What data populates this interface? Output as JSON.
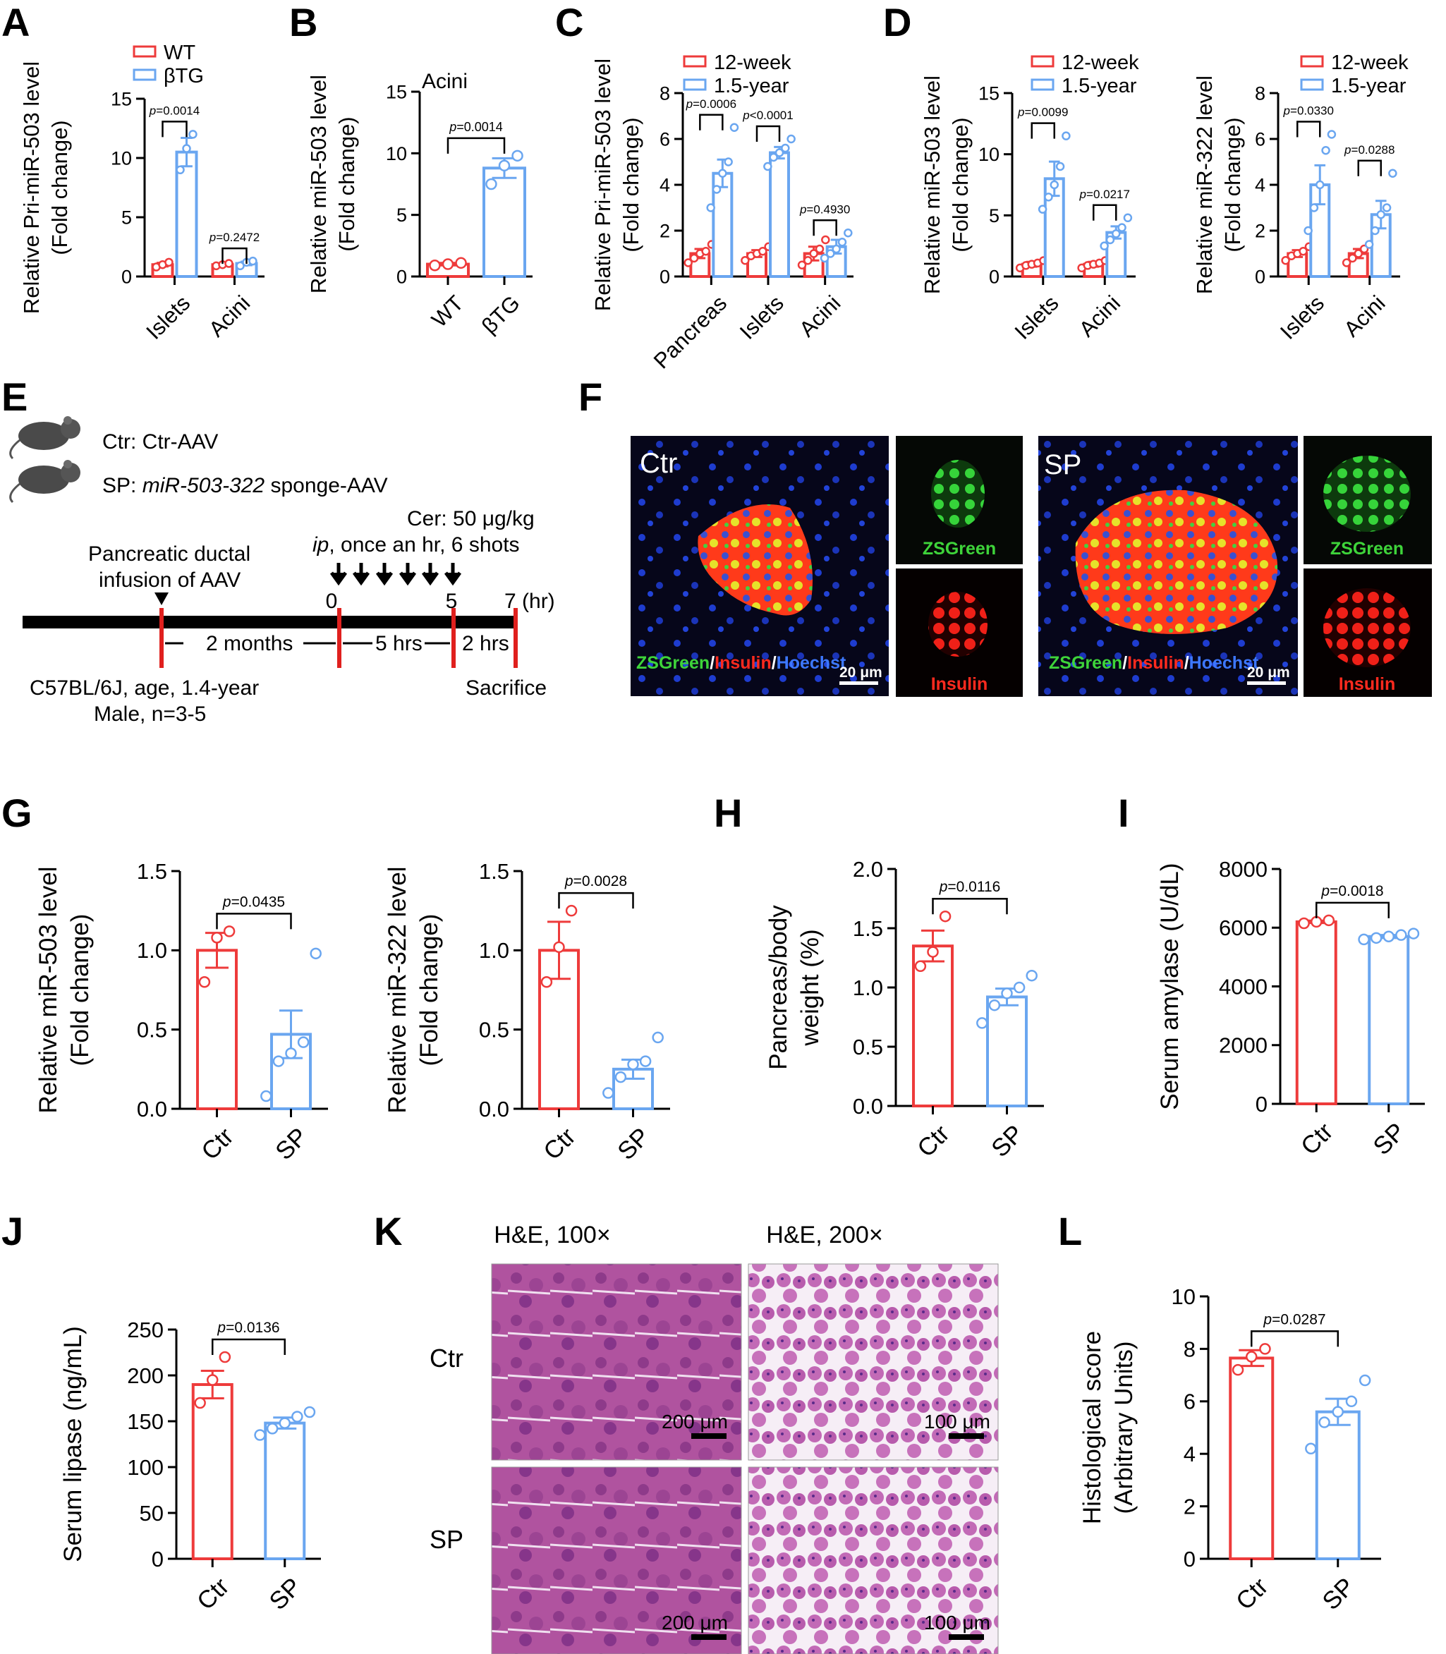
{
  "panel_labels": [
    "A",
    "B",
    "C",
    "D",
    "E",
    "F",
    "G",
    "H",
    "I",
    "J",
    "K",
    "L"
  ],
  "colors": {
    "red": "#ee3b3b",
    "blue": "#6aa6f0",
    "black": "#000000",
    "dark_bg": "#06061a",
    "ctr_text": "#ffffff"
  },
  "chart_data": [
    {
      "id": "A",
      "type": "bar",
      "ylabel": "Relative Pri-miR-503 level",
      "ylabel2": "(Fold change)",
      "ylim": [
        0,
        15
      ],
      "yticks": [
        0,
        5,
        10,
        15
      ],
      "categories": [
        "Islets",
        "Acini"
      ],
      "legend": [
        "WT",
        "βTG"
      ],
      "series": [
        {
          "name": "WT",
          "values": [
            1.0,
            1.0
          ],
          "errors": [
            0.15,
            0.1
          ],
          "points": [
            [
              0.8,
              1.0,
              1.2
            ],
            [
              0.9,
              1.0,
              1.1
            ]
          ]
        },
        {
          "name": "βTG",
          "values": [
            10.5,
            1.1
          ],
          "errors": [
            1.2,
            0.15
          ],
          "points": [
            [
              9.0,
              10.8,
              12.0
            ],
            [
              0.9,
              1.2,
              1.3
            ]
          ]
        }
      ],
      "pvalues": [
        {
          "label": "p=0.0014",
          "group": 0
        },
        {
          "label": "p=0.2472",
          "group": 1
        }
      ]
    },
    {
      "id": "B",
      "type": "bar",
      "title": "Acini",
      "ylabel": "Relative miR-503 level",
      "ylabel2": "(Fold change)",
      "ylim": [
        0,
        15
      ],
      "yticks": [
        0,
        5,
        10,
        15
      ],
      "categories": [
        "WT",
        "βTG"
      ],
      "series": [
        {
          "name": "value",
          "values": [
            1.0,
            8.8
          ],
          "errors": [
            0.1,
            0.8
          ],
          "points": [
            [
              0.9,
              1.0,
              1.1
            ],
            [
              7.5,
              9.0,
              9.8
            ]
          ]
        }
      ],
      "pvalues": [
        {
          "label": "p=0.0014",
          "pair": [
            0,
            1
          ]
        }
      ]
    },
    {
      "id": "C",
      "type": "bar",
      "ylabel": "Relative Pri-miR-503 level",
      "ylabel2": "(Fold change)",
      "ylim": [
        0,
        8
      ],
      "yticks": [
        0,
        2,
        4,
        6,
        8
      ],
      "categories": [
        "Pancreas",
        "Islets",
        "Acini"
      ],
      "legend": [
        "12-week",
        "1.5-year"
      ],
      "series": [
        {
          "name": "12-week",
          "values": [
            1.0,
            1.0,
            1.0
          ],
          "errors": [
            0.2,
            0.15,
            0.3
          ],
          "points": [
            [
              0.6,
              0.8,
              1.0,
              1.1,
              1.4
            ],
            [
              0.7,
              0.9,
              1.0,
              1.1,
              1.3
            ],
            [
              0.5,
              0.7,
              1.0,
              1.2,
              1.6
            ]
          ]
        },
        {
          "name": "1.5-year",
          "values": [
            4.5,
            5.4,
            1.3
          ],
          "errors": [
            0.6,
            0.25,
            0.3
          ],
          "points": [
            [
              3.0,
              3.8,
              4.5,
              5.0,
              6.5
            ],
            [
              4.8,
              5.2,
              5.4,
              5.6,
              6.0
            ],
            [
              0.8,
              1.0,
              1.2,
              1.5,
              1.9
            ]
          ]
        }
      ],
      "pvalues": [
        {
          "label": "p=0.0006",
          "group": 0
        },
        {
          "label": "p<0.0001",
          "group": 1
        },
        {
          "label": "p=0.4930",
          "group": 2
        }
      ]
    },
    {
      "id": "D1",
      "type": "bar",
      "ylabel": "Relative miR-503 level",
      "ylabel2": "(Fold change)",
      "ylim": [
        0,
        15
      ],
      "yticks": [
        0,
        5,
        10,
        15
      ],
      "categories": [
        "Islets",
        "Acini"
      ],
      "legend": [
        "12-week",
        "1.5-year"
      ],
      "series": [
        {
          "name": "12-week",
          "values": [
            1.0,
            1.0
          ],
          "errors": [
            0.2,
            0.2
          ],
          "points": [
            [
              0.7,
              0.9,
              1.0,
              1.1,
              1.3
            ],
            [
              0.7,
              0.9,
              1.0,
              1.1,
              1.3
            ]
          ]
        },
        {
          "name": "1.5-year",
          "values": [
            8.0,
            3.6
          ],
          "errors": [
            1.4,
            0.5
          ],
          "points": [
            [
              5.5,
              6.5,
              7.5,
              9.0,
              11.5
            ],
            [
              2.5,
              3.0,
              3.5,
              4.0,
              4.8
            ]
          ]
        }
      ],
      "pvalues": [
        {
          "label": "p=0.0099",
          "group": 0
        },
        {
          "label": "p=0.0217",
          "group": 1
        }
      ]
    },
    {
      "id": "D2",
      "type": "bar",
      "ylabel": "Relative miR-322 level",
      "ylabel2": "(Fold change)",
      "ylim": [
        0,
        8
      ],
      "yticks": [
        0,
        2,
        4,
        6,
        8
      ],
      "categories": [
        "Islets",
        "Acini"
      ],
      "legend": [
        "12-week",
        "1.5-year"
      ],
      "series": [
        {
          "name": "12-week",
          "values": [
            1.0,
            1.0
          ],
          "errors": [
            0.15,
            0.2
          ],
          "points": [
            [
              0.7,
              0.9,
              1.0,
              1.1,
              1.3
            ],
            [
              0.6,
              0.8,
              1.0,
              1.2,
              1.4
            ]
          ]
        },
        {
          "name": "1.5-year",
          "values": [
            4.0,
            2.7
          ],
          "errors": [
            0.85,
            0.6
          ],
          "points": [
            [
              2.0,
              3.0,
              4.0,
              5.5,
              6.2
            ],
            [
              1.4,
              2.0,
              2.7,
              3.0,
              4.5
            ]
          ]
        }
      ],
      "pvalues": [
        {
          "label": "p=0.0330",
          "group": 0
        },
        {
          "label": "p=0.0288",
          "group": 1
        }
      ]
    },
    {
      "id": "G1",
      "type": "bar",
      "ylabel": "Relative miR-503 level",
      "ylabel2": "(Fold change)",
      "ylim": [
        0,
        1.5
      ],
      "yticks": [
        "0.0",
        "0.5",
        "1.0",
        "1.5"
      ],
      "categories": [
        "Ctr",
        "SP"
      ],
      "series": [
        {
          "name": "value",
          "values": [
            1.0,
            0.47
          ],
          "errors": [
            0.11,
            0.15
          ],
          "points": [
            [
              0.8,
              1.08,
              1.12
            ],
            [
              0.08,
              0.3,
              0.35,
              0.42,
              0.98
            ]
          ]
        }
      ],
      "pvalues": [
        {
          "label": "p=0.0435",
          "pair": [
            0,
            1
          ]
        }
      ]
    },
    {
      "id": "G2",
      "type": "bar",
      "ylabel": "Relative miR-322 level",
      "ylabel2": "(Fold change)",
      "ylim": [
        0,
        1.5
      ],
      "yticks": [
        "0.0",
        "0.5",
        "1.0",
        "1.5"
      ],
      "categories": [
        "Ctr",
        "SP"
      ],
      "series": [
        {
          "name": "value",
          "values": [
            1.0,
            0.25
          ],
          "errors": [
            0.18,
            0.06
          ],
          "points": [
            [
              0.8,
              1.02,
              1.25
            ],
            [
              0.1,
              0.2,
              0.28,
              0.3,
              0.45
            ]
          ]
        }
      ],
      "pvalues": [
        {
          "label": "p=0.0028",
          "pair": [
            0,
            1
          ]
        }
      ]
    },
    {
      "id": "H",
      "type": "bar",
      "ylabel": "Pancreas/body",
      "ylabel2": "weight (%)",
      "ylim": [
        0,
        2.0
      ],
      "yticks": [
        "0.0",
        "0.5",
        "1.0",
        "1.5",
        "2.0"
      ],
      "categories": [
        "Ctr",
        "SP"
      ],
      "series": [
        {
          "name": "value",
          "values": [
            1.35,
            0.92
          ],
          "errors": [
            0.13,
            0.07
          ],
          "points": [
            [
              1.18,
              1.3,
              1.6
            ],
            [
              0.7,
              0.85,
              0.95,
              1.0,
              1.1
            ]
          ]
        }
      ],
      "pvalues": [
        {
          "label": "p=0.0116",
          "pair": [
            0,
            1
          ]
        }
      ]
    },
    {
      "id": "I",
      "type": "bar",
      "ylabel": "Serum amylase (U/dL)",
      "ylim": [
        0,
        8000
      ],
      "yticks": [
        0,
        2000,
        4000,
        6000,
        8000
      ],
      "categories": [
        "Ctr",
        "SP"
      ],
      "series": [
        {
          "name": "value",
          "values": [
            6200,
            5700
          ],
          "errors": [
            40,
            50
          ],
          "points": [
            [
              6150,
              6200,
              6250
            ],
            [
              5600,
              5650,
              5700,
              5750,
              5800
            ]
          ]
        }
      ],
      "pvalues": [
        {
          "label": "p=0.0018",
          "pair": [
            0,
            1
          ]
        }
      ]
    },
    {
      "id": "J",
      "type": "bar",
      "ylabel": "Serum lipase (ng/mL)",
      "ylim": [
        0,
        250
      ],
      "yticks": [
        0,
        50,
        100,
        150,
        200,
        250
      ],
      "categories": [
        "Ctr",
        "SP"
      ],
      "series": [
        {
          "name": "value",
          "values": [
            190,
            148
          ],
          "errors": [
            15,
            6
          ],
          "points": [
            [
              170,
              195,
              220
            ],
            [
              135,
              142,
              148,
              155,
              160
            ]
          ]
        }
      ],
      "pvalues": [
        {
          "label": "p=0.0136",
          "pair": [
            0,
            1
          ]
        }
      ]
    },
    {
      "id": "L",
      "type": "bar",
      "ylabel": "Histological score",
      "ylabel2": "(Arbitrary Units)",
      "ylim": [
        0,
        10
      ],
      "yticks": [
        0,
        2,
        4,
        6,
        8,
        10
      ],
      "categories": [
        "Ctr",
        "SP"
      ],
      "series": [
        {
          "name": "value",
          "values": [
            7.65,
            5.6
          ],
          "errors": [
            0.3,
            0.5
          ],
          "points": [
            [
              7.2,
              7.7,
              8.0
            ],
            [
              4.2,
              5.2,
              5.6,
              6.0,
              6.8
            ]
          ]
        }
      ],
      "pvalues": [
        {
          "label": "p=0.0287",
          "pair": [
            0,
            1
          ]
        }
      ]
    }
  ],
  "panel_E": {
    "ctr_label": "Ctr: Ctr-AAV",
    "sp_label_prefix": "SP: ",
    "sp_label_italic": "miR-503-322",
    "sp_label_suffix": " sponge-AAV",
    "cer_line1": "Cer: 50 μg/kg",
    "cer_line2_italic": "ip",
    "cer_line2_rest": ", once an hr, 6 shots",
    "infusion_line1": "Pancreatic ductal",
    "infusion_line2": "infusion of AAV",
    "ticks": [
      "0",
      "5",
      "7 (hr)"
    ],
    "interval1": "2 months",
    "interval2": "5 hrs",
    "interval3": "2 hrs",
    "strain_line1": "C57BL/6J, age, 1.4-year",
    "strain_line2": "Male, n=3-5",
    "sacrifice": "Sacrifice"
  },
  "panel_F": {
    "ctr_title": "Ctr",
    "sp_title": "SP",
    "merge_zs": "ZSGreen",
    "merge_sep": "/",
    "merge_ins": "Insulin",
    "merge_hoe": "Hoechst",
    "zsgreen": "ZSGreen",
    "insulin": "Insulin",
    "scale": "20 μm"
  },
  "panel_K": {
    "col1": "H&E, 100×",
    "col2": "H&E, 200×",
    "row1": "Ctr",
    "row2": "SP",
    "scale1": "200 μm",
    "scale2": "100 μm"
  }
}
